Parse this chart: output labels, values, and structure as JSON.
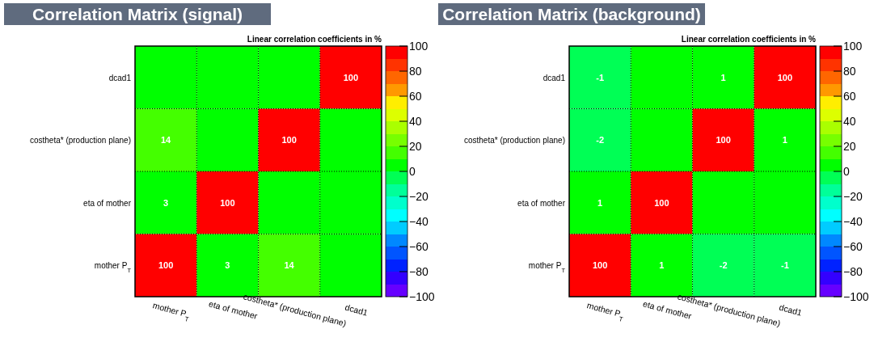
{
  "chart_data": [
    {
      "type": "heatmap",
      "title": "Correlation Matrix (signal)",
      "clabel": "Linear correlation coefficients in %",
      "categories": [
        "mother P$_{T}$",
        "eta of mother",
        "costheta* (production plane)",
        "dcad1"
      ],
      "y_categories": [
        "dcad1",
        "costheta* (production plane)",
        "eta of mother",
        "mother P$_{T}$"
      ],
      "cells": [
        [
          0,
          0,
          0,
          100
        ],
        [
          14,
          0,
          100,
          0
        ],
        [
          3,
          100,
          0,
          0
        ],
        [
          100,
          3,
          14,
          0
        ]
      ],
      "cell_labels": [
        [
          null,
          null,
          null,
          "100"
        ],
        [
          "14",
          null,
          "100",
          null
        ],
        [
          "3",
          "100",
          null,
          null
        ],
        [
          "100",
          "3",
          "14",
          null
        ]
      ],
      "clim": [
        -100,
        100
      ],
      "cticks": [
        -100,
        -80,
        -60,
        -40,
        -20,
        0,
        20,
        40,
        60,
        80,
        100
      ],
      "grid": true
    },
    {
      "type": "heatmap",
      "title": "Correlation Matrix (background)",
      "clabel": "Linear correlation coefficients in %",
      "categories": [
        "mother P$_{T}$",
        "eta of mother",
        "costheta* (production plane)",
        "dcad1"
      ],
      "y_categories": [
        "dcad1",
        "costheta* (production plane)",
        "eta of mother",
        "mother P$_{T}$"
      ],
      "cells": [
        [
          -1,
          0,
          1,
          100
        ],
        [
          -2,
          0,
          100,
          1
        ],
        [
          1,
          100,
          0,
          0
        ],
        [
          100,
          1,
          -2,
          -1
        ]
      ],
      "cell_labels": [
        [
          "-1",
          null,
          "1",
          "100"
        ],
        [
          "-2",
          null,
          "100",
          "1"
        ],
        [
          "1",
          "100",
          null,
          null
        ],
        [
          "100",
          "1",
          "-2",
          "-1"
        ]
      ],
      "clim": [
        -100,
        100
      ],
      "cticks": [
        -100,
        -80,
        -60,
        -40,
        -20,
        0,
        20,
        40,
        60,
        80,
        100
      ],
      "grid": true
    }
  ]
}
